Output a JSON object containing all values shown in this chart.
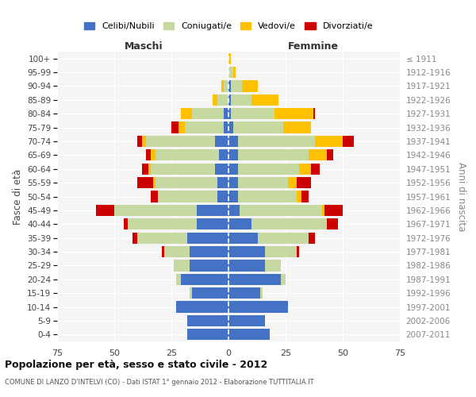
{
  "age_groups": [
    "0-4",
    "5-9",
    "10-14",
    "15-19",
    "20-24",
    "25-29",
    "30-34",
    "35-39",
    "40-44",
    "45-49",
    "50-54",
    "55-59",
    "60-64",
    "65-69",
    "70-74",
    "75-79",
    "80-84",
    "85-89",
    "90-94",
    "95-99",
    "100+"
  ],
  "birth_years": [
    "2007-2011",
    "2002-2006",
    "1997-2001",
    "1992-1996",
    "1987-1991",
    "1982-1986",
    "1977-1981",
    "1972-1976",
    "1967-1971",
    "1962-1966",
    "1957-1961",
    "1952-1956",
    "1947-1951",
    "1942-1946",
    "1937-1941",
    "1932-1936",
    "1927-1931",
    "1922-1926",
    "1917-1921",
    "1912-1916",
    "≤ 1911"
  ],
  "colors": {
    "celibe": "#4472C4",
    "coniugato": "#c5d9a0",
    "vedovo": "#ffc000",
    "divorziato": "#cc0000"
  },
  "maschi": {
    "celibe": [
      18,
      18,
      23,
      16,
      21,
      17,
      17,
      18,
      14,
      14,
      5,
      5,
      6,
      4,
      6,
      2,
      2,
      0,
      0,
      0,
      0
    ],
    "coniugato": [
      0,
      0,
      0,
      1,
      2,
      7,
      11,
      22,
      30,
      36,
      26,
      27,
      28,
      28,
      30,
      17,
      14,
      5,
      2,
      0,
      0
    ],
    "vedovo": [
      0,
      0,
      0,
      0,
      0,
      0,
      0,
      0,
      0,
      0,
      0,
      1,
      1,
      2,
      2,
      3,
      5,
      2,
      1,
      0,
      0
    ],
    "divorziato": [
      0,
      0,
      0,
      0,
      0,
      0,
      1,
      2,
      2,
      8,
      3,
      7,
      3,
      2,
      2,
      3,
      0,
      0,
      0,
      0,
      0
    ]
  },
  "femmine": {
    "nubile": [
      18,
      16,
      26,
      14,
      23,
      16,
      16,
      13,
      10,
      5,
      4,
      4,
      4,
      4,
      4,
      2,
      1,
      1,
      1,
      0,
      0
    ],
    "coniugata": [
      0,
      0,
      0,
      1,
      2,
      7,
      14,
      22,
      33,
      36,
      26,
      22,
      27,
      31,
      34,
      22,
      19,
      9,
      5,
      2,
      0
    ],
    "vedova": [
      0,
      0,
      0,
      0,
      0,
      0,
      0,
      0,
      0,
      1,
      2,
      4,
      5,
      8,
      12,
      12,
      17,
      12,
      7,
      1,
      1
    ],
    "divorziata": [
      0,
      0,
      0,
      0,
      0,
      0,
      1,
      3,
      5,
      8,
      3,
      6,
      4,
      3,
      5,
      0,
      1,
      0,
      0,
      0,
      0
    ]
  },
  "xlim": 75,
  "title": "Popolazione per età, sesso e stato civile - 2012",
  "subtitle": "COMUNE DI LANZO D'INTELVI (CO) - Dati ISTAT 1° gennaio 2012 - Elaborazione TUTTITALIA.IT",
  "ylabel_left": "Fasce di età",
  "ylabel_right": "Anni di nascita",
  "xlabel_maschi": "Maschi",
  "xlabel_femmine": "Femmine",
  "legend_labels": [
    "Celibi/Nubili",
    "Coniugati/e",
    "Vedovi/e",
    "Divorziati/e"
  ]
}
